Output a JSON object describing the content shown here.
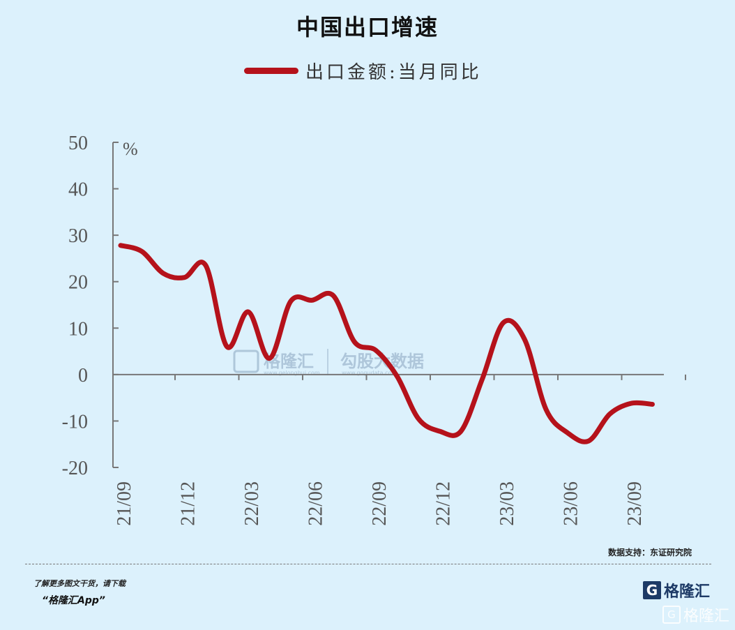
{
  "chart_data": {
    "type": "line",
    "title": "中国出口增速",
    "legend": [
      "出口金额:当月同比"
    ],
    "unit": "%",
    "xlabel": "",
    "ylabel": "",
    "ylim": [
      -20,
      50
    ],
    "y_ticks": [
      "50",
      "40",
      "30",
      "20",
      "10",
      "0",
      "-10",
      "-20"
    ],
    "x_tick_labels": [
      "21/09",
      "21/12",
      "22/03",
      "22/06",
      "22/09",
      "22/12",
      "23/03",
      "23/06",
      "23/09"
    ],
    "x": [
      "21/09",
      "21/10",
      "21/11",
      "21/12",
      "22/01",
      "22/02",
      "22/03",
      "22/04",
      "22/05",
      "22/06",
      "22/07",
      "22/08",
      "22/09",
      "22/10",
      "22/11",
      "22/12",
      "23/01",
      "23/02",
      "23/03",
      "23/04",
      "23/05",
      "23/06",
      "23/07",
      "23/08",
      "23/09",
      "23/10"
    ],
    "series": [
      {
        "name": "出口金额:当月同比",
        "color": "#b5121b",
        "values": [
          27.8,
          26.5,
          21.8,
          20.9,
          23.5,
          6.0,
          13.5,
          3.5,
          15.8,
          16.0,
          17.0,
          7.0,
          5.2,
          -0.4,
          -9.5,
          -12.2,
          -12.2,
          -1.0,
          11.2,
          7.5,
          -7.5,
          -12.5,
          -14.3,
          -8.5,
          -6.2,
          -6.4
        ]
      }
    ]
  },
  "watermark": {
    "brand": "格隆汇",
    "brand_url": "www.gelonghui.com",
    "data_brand": "勾股大数据",
    "data_url": "www.gogudata.com"
  },
  "source_text": "数据支持：东证研究院",
  "footer": {
    "line1": "了解更多图文干货，请下载",
    "line2": "“格隆汇App”"
  },
  "logo": {
    "letter": "G",
    "text": "格隆汇"
  },
  "corner_mark": {
    "letter": "G",
    "text": "格隆汇"
  },
  "colors": {
    "background": "#dcf1fc",
    "line": "#b5121b",
    "axis": "#777777"
  }
}
